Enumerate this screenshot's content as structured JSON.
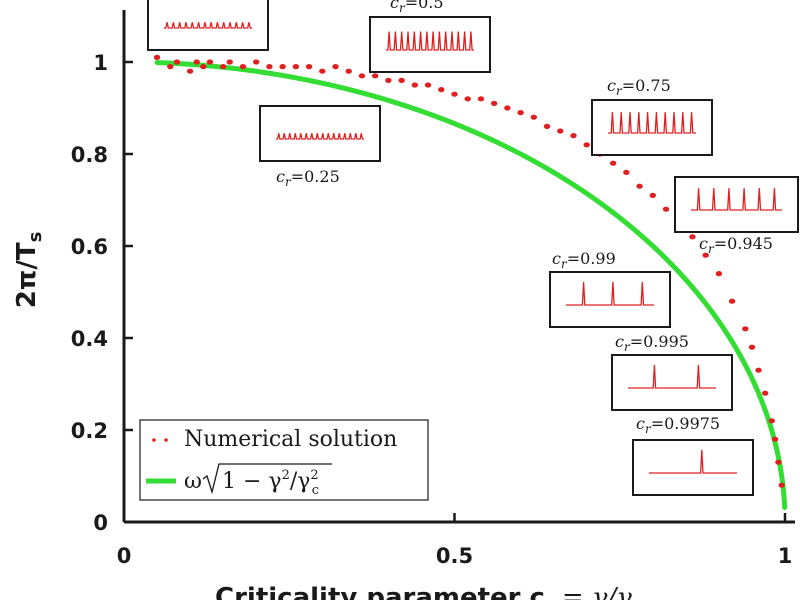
{
  "chart_data": {
    "type": "scatter",
    "xlabel_main": "Criticality parameter c",
    "xlabel_sub": "r",
    "xlabel_eq": "= γ/γ",
    "xlabel_eq_sub": "c",
    "ylabel_main": "2π/T",
    "ylabel_sub": "s",
    "xlim": [
      0,
      1
    ],
    "ylim": [
      0,
      1.1
    ],
    "xticks": [
      0,
      0.5,
      1
    ],
    "xtick_labels": [
      "0",
      "0.5",
      "1"
    ],
    "yticks": [
      0,
      0.2,
      0.4,
      0.6,
      0.8,
      1
    ],
    "ytick_labels": [
      "0",
      "0.2",
      "0.4",
      "0.6",
      "0.8",
      "1"
    ],
    "colors": {
      "numerical": "#e02020",
      "analytic": "#33dd33",
      "axis": "#1a1a1a"
    },
    "series": [
      {
        "name": "Numerical solution",
        "kind": "scatter",
        "x": [
          0.05,
          0.07,
          0.08,
          0.1,
          0.11,
          0.12,
          0.13,
          0.15,
          0.16,
          0.18,
          0.2,
          0.22,
          0.24,
          0.26,
          0.28,
          0.3,
          0.32,
          0.34,
          0.36,
          0.38,
          0.4,
          0.42,
          0.44,
          0.46,
          0.48,
          0.5,
          0.52,
          0.54,
          0.56,
          0.58,
          0.6,
          0.62,
          0.64,
          0.66,
          0.68,
          0.7,
          0.72,
          0.74,
          0.76,
          0.78,
          0.8,
          0.82,
          0.84,
          0.86,
          0.88,
          0.9,
          0.92,
          0.94,
          0.95,
          0.96,
          0.97,
          0.98,
          0.985,
          0.99,
          0.995
        ],
        "y": [
          1.01,
          0.99,
          1.0,
          0.98,
          1.0,
          0.99,
          1.0,
          0.99,
          1.0,
          0.99,
          1.0,
          0.99,
          0.99,
          0.99,
          0.99,
          0.98,
          0.99,
          0.98,
          0.97,
          0.97,
          0.96,
          0.96,
          0.95,
          0.95,
          0.94,
          0.93,
          0.92,
          0.92,
          0.91,
          0.9,
          0.89,
          0.88,
          0.86,
          0.85,
          0.84,
          0.82,
          0.8,
          0.78,
          0.76,
          0.73,
          0.71,
          0.68,
          0.65,
          0.62,
          0.58,
          0.54,
          0.48,
          0.42,
          0.38,
          0.33,
          0.28,
          0.22,
          0.18,
          0.13,
          0.08
        ]
      },
      {
        "name": "ω√(1 − γ²/γc²)",
        "kind": "line",
        "x_start": 0.05,
        "x_end": 0.9995,
        "formula": "sqrt(1 - x^2)"
      }
    ],
    "legend": {
      "position": "lower-left",
      "entries": [
        {
          "label": "Numerical solution",
          "marker": "dots"
        },
        {
          "label_prefix": "ω",
          "label_radicand": "1 − γ",
          "label_exp": "2",
          "label_div": "/γ",
          "label_sub": "c",
          "label_exp2": "2",
          "marker": "line"
        }
      ]
    },
    "insets": [
      {
        "label": "",
        "spikes": 14,
        "amplitude": 0.25,
        "x": 0.05
      },
      {
        "label": "c",
        "label_sub": "r",
        "label_val": "=0.5",
        "spikes": 14,
        "amplitude": 0.8,
        "x": 0.5
      },
      {
        "label": "c",
        "label_sub": "r",
        "label_val": "=0.25",
        "spikes": 16,
        "amplitude": 0.25,
        "x": 0.25
      },
      {
        "label": "c",
        "label_sub": "r",
        "label_val": "=0.75",
        "spikes": 10,
        "amplitude": 0.9,
        "x": 0.75
      },
      {
        "label": "c",
        "label_sub": "r",
        "label_val": "=0.945",
        "spikes": 6,
        "amplitude": 0.95,
        "x": 0.945
      },
      {
        "label": "c",
        "label_sub": "r",
        "label_val": "=0.99",
        "spikes": 3,
        "amplitude": 1.0,
        "x": 0.99
      },
      {
        "label": "c",
        "label_sub": "r",
        "label_val": "=0.995",
        "spikes": 2,
        "amplitude": 1.0,
        "x": 0.995
      },
      {
        "label": "c",
        "label_sub": "r",
        "label_val": "=0.9975",
        "spikes": 1,
        "amplitude": 1.0,
        "x": 0.9975
      }
    ]
  }
}
